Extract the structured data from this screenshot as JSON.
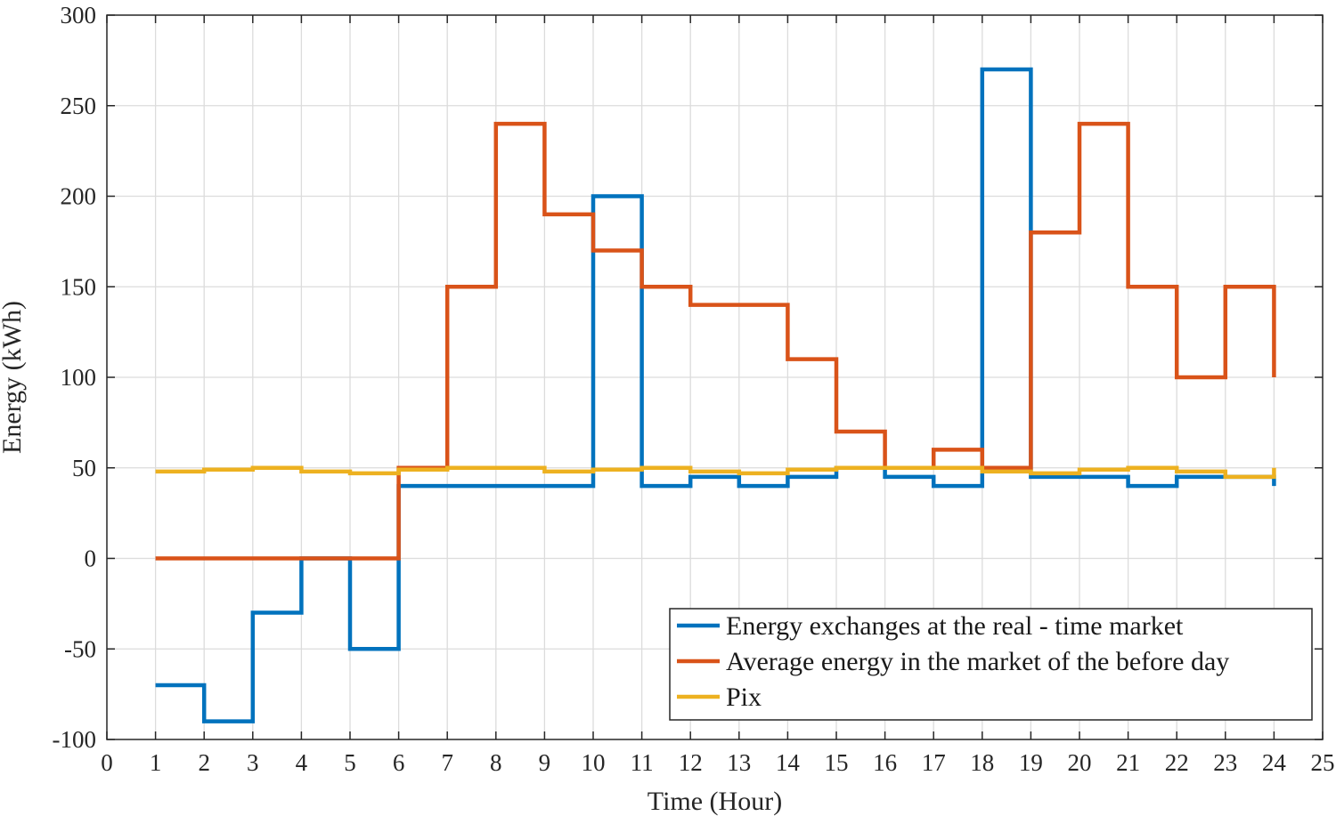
{
  "chart_data": {
    "type": "line",
    "step": "post",
    "title": "",
    "xlabel": "Time (Hour)",
    "ylabel": "Energy  (kWh)",
    "xlim": [
      0,
      25
    ],
    "ylim": [
      -100,
      300
    ],
    "xticks": [
      0,
      1,
      2,
      3,
      4,
      5,
      6,
      7,
      8,
      9,
      10,
      11,
      12,
      13,
      14,
      15,
      16,
      17,
      18,
      19,
      20,
      21,
      22,
      23,
      24,
      25
    ],
    "yticks": [
      -100,
      -50,
      0,
      50,
      100,
      150,
      200,
      250,
      300
    ],
    "grid": true,
    "legend_position": "bottom-right",
    "x": [
      1,
      2,
      3,
      4,
      5,
      6,
      7,
      8,
      9,
      10,
      11,
      12,
      13,
      14,
      15,
      16,
      17,
      18,
      19,
      20,
      21,
      22,
      23,
      24
    ],
    "series": [
      {
        "name": "Energy exchanges at the real - time market",
        "color": "#0072BD",
        "values": [
          -70,
          -90,
          -30,
          0,
          -50,
          40,
          40,
          40,
          40,
          200,
          40,
          45,
          40,
          45,
          50,
          45,
          40,
          270,
          45,
          45,
          40,
          45,
          45,
          40
        ]
      },
      {
        "name": "Average energy in the market of the before day",
        "color": "#D95319",
        "values": [
          0,
          0,
          0,
          0,
          0,
          50,
          150,
          240,
          190,
          170,
          150,
          140,
          140,
          110,
          70,
          50,
          60,
          50,
          180,
          240,
          150,
          100,
          150,
          100
        ]
      },
      {
        "name": "Pix",
        "color": "#EDB120",
        "values": [
          48,
          49,
          50,
          48,
          47,
          49,
          50,
          50,
          48,
          49,
          50,
          48,
          47,
          49,
          50,
          50,
          50,
          48,
          47,
          49,
          50,
          48,
          45,
          50
        ]
      }
    ]
  }
}
